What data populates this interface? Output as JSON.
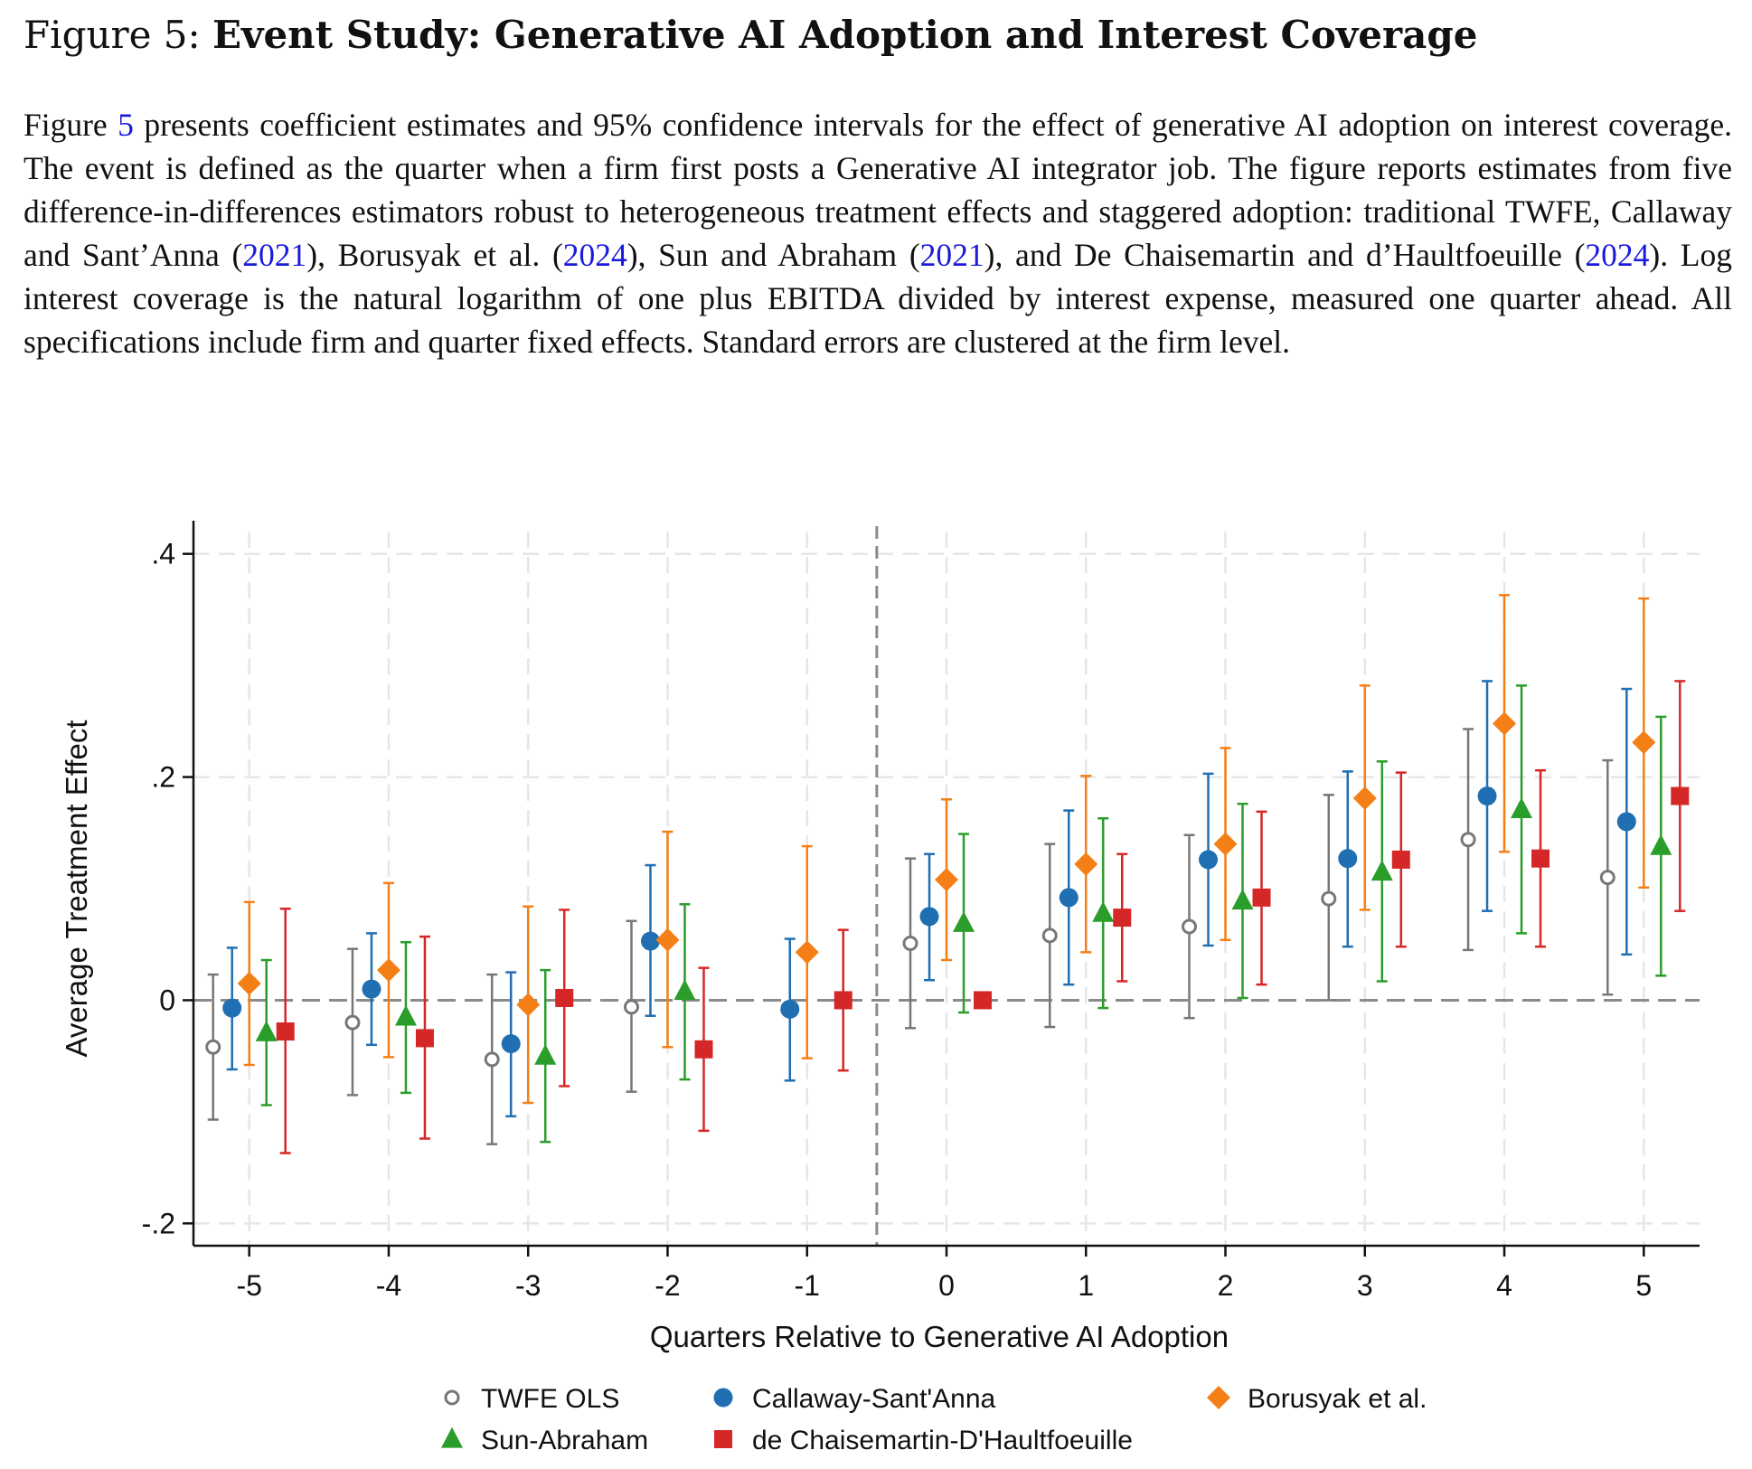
{
  "figure": {
    "label": "Figure 5:",
    "title": "Event Study: Generative AI Adoption and Interest Coverage"
  },
  "description": {
    "part1": "Figure ",
    "fig_ref": "5",
    "part2": " presents coefficient estimates and 95% confidence intervals for the effect of generative AI adoption on interest coverage. The event is defined as the quarter when a firm first posts a Generative AI integrator job. The figure reports estimates from five difference-in-differences estimators robust to heterogeneous treatment effects and staggered adoption: traditional TWFE, Callaway and Sant’Anna (",
    "cite1": "2021",
    "part3": "), Borusyak et al. (",
    "cite2": "2024",
    "part4": "), Sun and Abraham (",
    "cite3": "2021",
    "part5": "), and De Chaisemartin and d’Haultfoeuille (",
    "cite4": "2024",
    "part6": "). Log interest coverage is the natural logarithm of one plus EBITDA divided by interest expense, measured one quarter ahead. All specifications include firm and quarter fixed effects. Standard errors are clustered at the firm level."
  },
  "chart_data": {
    "type": "scatter",
    "subtype": "event-study coefficient plot with 95% confidence intervals",
    "xlabel": "Quarters Relative to Generative AI Adoption",
    "ylabel": "Average Treatment Effect",
    "x": [
      -5,
      -4,
      -3,
      -2,
      -1,
      0,
      1,
      2,
      3,
      4,
      5
    ],
    "x_tick_labels": [
      "-5",
      "-4",
      "-3",
      "-2",
      "-1",
      "0",
      "1",
      "2",
      "3",
      "4",
      "5"
    ],
    "xlim": [
      -5.4,
      5.4
    ],
    "ylim": [
      -0.22,
      0.42
    ],
    "y_ticks": [
      -0.2,
      0,
      0.2,
      0.4
    ],
    "y_tick_labels": [
      "-.2",
      "0",
      ".2",
      ".4"
    ],
    "grid": true,
    "event_line_x": -0.5,
    "reference_line_y": 0,
    "legend_position": "bottom",
    "series": [
      {
        "name": "TWFE OLS",
        "marker": "hollow-circle",
        "color": "#777777",
        "points": [
          {
            "x": -5,
            "y": -0.042,
            "lo": -0.107,
            "hi": 0.023
          },
          {
            "x": -4,
            "y": -0.02,
            "lo": -0.085,
            "hi": 0.046
          },
          {
            "x": -3,
            "y": -0.053,
            "lo": -0.129,
            "hi": 0.023
          },
          {
            "x": -2,
            "y": -0.006,
            "lo": -0.082,
            "hi": 0.071
          },
          {
            "x": 0,
            "y": 0.051,
            "lo": -0.025,
            "hi": 0.127
          },
          {
            "x": 1,
            "y": 0.058,
            "lo": -0.024,
            "hi": 0.14
          },
          {
            "x": 2,
            "y": 0.066,
            "lo": -0.016,
            "hi": 0.148
          },
          {
            "x": 3,
            "y": 0.091,
            "lo": 0.0,
            "hi": 0.184
          },
          {
            "x": 4,
            "y": 0.144,
            "lo": 0.045,
            "hi": 0.243
          },
          {
            "x": 5,
            "y": 0.11,
            "lo": 0.005,
            "hi": 0.215
          }
        ]
      },
      {
        "name": "Callaway-Sant'Anna",
        "marker": "circle",
        "color": "#1f6fb2",
        "points": [
          {
            "x": -5,
            "y": -0.007,
            "lo": -0.062,
            "hi": 0.047
          },
          {
            "x": -4,
            "y": 0.01,
            "lo": -0.04,
            "hi": 0.06
          },
          {
            "x": -3,
            "y": -0.039,
            "lo": -0.104,
            "hi": 0.025
          },
          {
            "x": -2,
            "y": 0.053,
            "lo": -0.014,
            "hi": 0.121
          },
          {
            "x": -1,
            "y": -0.008,
            "lo": -0.072,
            "hi": 0.055
          },
          {
            "x": 0,
            "y": 0.075,
            "lo": 0.018,
            "hi": 0.131
          },
          {
            "x": 1,
            "y": 0.092,
            "lo": 0.014,
            "hi": 0.17
          },
          {
            "x": 2,
            "y": 0.126,
            "lo": 0.049,
            "hi": 0.203
          },
          {
            "x": 3,
            "y": 0.127,
            "lo": 0.048,
            "hi": 0.205
          },
          {
            "x": 4,
            "y": 0.183,
            "lo": 0.08,
            "hi": 0.286
          },
          {
            "x": 5,
            "y": 0.16,
            "lo": 0.041,
            "hi": 0.279
          }
        ]
      },
      {
        "name": "Borusyak et al.",
        "marker": "diamond",
        "color": "#f47f17",
        "points": [
          {
            "x": -5,
            "y": 0.015,
            "lo": -0.058,
            "hi": 0.088
          },
          {
            "x": -4,
            "y": 0.027,
            "lo": -0.051,
            "hi": 0.105
          },
          {
            "x": -3,
            "y": -0.004,
            "lo": -0.092,
            "hi": 0.084
          },
          {
            "x": -2,
            "y": 0.054,
            "lo": -0.042,
            "hi": 0.151
          },
          {
            "x": -1,
            "y": 0.043,
            "lo": -0.052,
            "hi": 0.138
          },
          {
            "x": 0,
            "y": 0.108,
            "lo": 0.036,
            "hi": 0.18
          },
          {
            "x": 1,
            "y": 0.122,
            "lo": 0.043,
            "hi": 0.201
          },
          {
            "x": 2,
            "y": 0.14,
            "lo": 0.054,
            "hi": 0.226
          },
          {
            "x": 3,
            "y": 0.181,
            "lo": 0.081,
            "hi": 0.282
          },
          {
            "x": 4,
            "y": 0.248,
            "lo": 0.133,
            "hi": 0.363
          },
          {
            "x": 5,
            "y": 0.231,
            "lo": 0.101,
            "hi": 0.36
          }
        ]
      },
      {
        "name": "Sun-Abraham",
        "marker": "triangle",
        "color": "#2a9d2a",
        "points": [
          {
            "x": -5,
            "y": -0.029,
            "lo": -0.094,
            "hi": 0.036
          },
          {
            "x": -4,
            "y": -0.015,
            "lo": -0.083,
            "hi": 0.052
          },
          {
            "x": -3,
            "y": -0.05,
            "lo": -0.127,
            "hi": 0.027
          },
          {
            "x": -2,
            "y": 0.008,
            "lo": -0.071,
            "hi": 0.086
          },
          {
            "x": 0,
            "y": 0.069,
            "lo": -0.011,
            "hi": 0.149
          },
          {
            "x": 1,
            "y": 0.078,
            "lo": -0.007,
            "hi": 0.163
          },
          {
            "x": 2,
            "y": 0.089,
            "lo": 0.002,
            "hi": 0.176
          },
          {
            "x": 3,
            "y": 0.115,
            "lo": 0.017,
            "hi": 0.214
          },
          {
            "x": 4,
            "y": 0.171,
            "lo": 0.06,
            "hi": 0.282
          },
          {
            "x": 5,
            "y": 0.138,
            "lo": 0.022,
            "hi": 0.254
          }
        ]
      },
      {
        "name": "de Chaisemartin-D'Haultfoeuille",
        "marker": "square",
        "color": "#d62728",
        "points": [
          {
            "x": -5,
            "y": -0.028,
            "lo": -0.137,
            "hi": 0.082
          },
          {
            "x": -4,
            "y": -0.034,
            "lo": -0.124,
            "hi": 0.057
          },
          {
            "x": -3,
            "y": 0.002,
            "lo": -0.077,
            "hi": 0.081
          },
          {
            "x": -2,
            "y": -0.044,
            "lo": -0.117,
            "hi": 0.029
          },
          {
            "x": -1,
            "y": 0.0,
            "lo": -0.063,
            "hi": 0.063
          },
          {
            "x": 0,
            "y": 0.0,
            "lo": 0.0,
            "hi": 0.0
          },
          {
            "x": 1,
            "y": 0.074,
            "lo": 0.017,
            "hi": 0.131
          },
          {
            "x": 2,
            "y": 0.092,
            "lo": 0.014,
            "hi": 0.169
          },
          {
            "x": 3,
            "y": 0.126,
            "lo": 0.048,
            "hi": 0.204
          },
          {
            "x": 4,
            "y": 0.127,
            "lo": 0.048,
            "hi": 0.206
          },
          {
            "x": 5,
            "y": 0.183,
            "lo": 0.08,
            "hi": 0.286
          }
        ]
      }
    ]
  }
}
